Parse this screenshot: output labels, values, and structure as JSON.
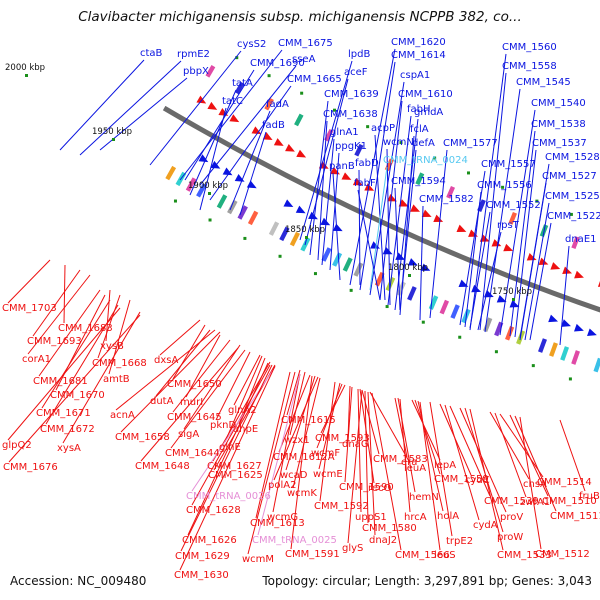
{
  "title": "Clavibacter michiganensis subsp. michiganensis NCPPB 382, co...",
  "footer": {
    "accession": "Accession: NC_009480",
    "summary": "Topology: circular; Length: 3,297,891 bp; Genes: 3,043"
  },
  "colors": {
    "forward": "#0a14e0",
    "reverse": "#ee1111",
    "rna": "#55c8f0",
    "rna_reverse": "#e58fd6",
    "backbone": "#6a6a6a"
  },
  "ticks": [
    "2000 kbp",
    "1950 kbp",
    "1900 kbp",
    "1850 kbp",
    "1800 kbp",
    "1750 kbp"
  ],
  "forward_labels": [
    "ctaB",
    "rpmE2",
    "pbpX",
    "cysS2",
    "CMM_1675",
    "sseA",
    "CMM_1690",
    "tatA",
    "tatC",
    "CMM_1665",
    "fadA",
    "fadB",
    "lpdB",
    "aceF",
    "CMM_1639",
    "CMM_1638",
    "glnA1",
    "ppgK1",
    "panB",
    "CMM_1620",
    "CMM_1614",
    "cspA1",
    "CMM_1610",
    "fabH",
    "gmdA",
    "acpP",
    "wcmN",
    "defA",
    "fclA",
    "fabD",
    "CMM_tRNA_0024",
    "fabF",
    "CMM_1594",
    "CMM_1582",
    "CMM_1577",
    "CMM_1560",
    "CMM_1558",
    "CMM_1545",
    "CMM_1540",
    "CMM_1538",
    "CMM_1537",
    "CMM_1528",
    "CMM_1557",
    "CMM_1556",
    "CMM_1552",
    "rpsT",
    "CMM_1527",
    "CMM_1525",
    "CMM_1522",
    "dnaE1"
  ],
  "reverse_labels": [
    "CMM_1703",
    "CMM_1683",
    "CMM_1693",
    "corA1",
    "xysB",
    "CMM_1668",
    "amtB",
    "CMM_1681",
    "CMM_1670",
    "CMM_1671",
    "CMM_1672",
    "glpQ2",
    "xysA",
    "CMM_1676",
    "dxsA",
    "CMM_1650",
    "dutA",
    "murI",
    "acnA",
    "CMM_1645",
    "CMM_1658",
    "sigA",
    "CMM_1644",
    "CMM_1648",
    "pknD",
    "glnA2",
    "ahpE",
    "glnE",
    "CMM_1627",
    "CMM_1625",
    "CMM_1615",
    "wzx1",
    "CMM_1612A",
    "wcaD",
    "polA2",
    "wcmK",
    "CMM_1613",
    "wcmG",
    "CMM_1628",
    "CMM_tRNA_0026",
    "CMM_1626",
    "CMM_1629",
    "CMM_1630",
    "wcmM",
    "CMM_tRNA_0025",
    "CMM_1591",
    "CMM_1592",
    "wcmE",
    "wcmF",
    "CMM_1593",
    "dnaG",
    "CMM_1590",
    "recO",
    "CMM_1583",
    "uppS1",
    "leuA",
    "CMM_1580",
    "glyS",
    "dnaJ2",
    "CMM_1566",
    "era",
    "hemN",
    "hrcA",
    "lepA",
    "CMM_1559",
    "holA",
    "leuS",
    "trpE2",
    "cydC",
    "cydA",
    "CMM_1539",
    "proV",
    "proW",
    "CMM_1533",
    "chsA",
    "zwfA1",
    "CMM_1514",
    "CMM_1510",
    "CMM_1511",
    "CMM_1512",
    "fruB"
  ]
}
